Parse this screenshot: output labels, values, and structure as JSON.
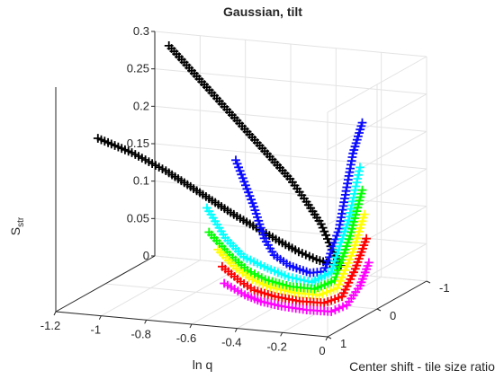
{
  "chart_data": {
    "type": "line",
    "title": "Gaussian, tilt",
    "xlabel": "ln q",
    "ylabel": "Center shift - tile size ratio",
    "zlabel": "S",
    "zlabel_sub": "str",
    "xlim": [
      -1.2,
      0
    ],
    "ylim": [
      -1,
      1
    ],
    "zlim": [
      0,
      0.3
    ],
    "xticks": [
      "-1.2",
      "-1",
      "-0.8",
      "-0.6",
      "-0.4",
      "-0.2",
      "0"
    ],
    "yticks": [
      "1",
      "0",
      "-1"
    ],
    "zticks": [
      "0",
      "0.05",
      "0.1",
      "0.15",
      "0.2",
      "0.25",
      "0.3"
    ],
    "grid": true,
    "marker": "+",
    "series": [
      {
        "color": "#000000",
        "x": [
          -1.2,
          -1.05,
          -0.9,
          -0.75,
          -0.6,
          -0.5,
          -0.4,
          -0.32,
          -0.25,
          -0.2,
          -0.16
        ],
        "y": [
          0.15,
          0.15,
          0.15,
          0.15,
          0.15,
          0.15,
          0.15,
          0.12,
          0.08,
          0.04,
          0.0
        ],
        "z": [
          0.2,
          0.185,
          0.165,
          0.14,
          0.115,
          0.1,
          0.085,
          0.072,
          0.062,
          0.056,
          0.053
        ]
      },
      {
        "color": "#000000",
        "x": [
          -1.05,
          -0.95,
          -0.85,
          -0.75,
          -0.65,
          -0.55,
          -0.45,
          -0.36,
          -0.28,
          -0.22,
          -0.16
        ],
        "y": [
          -0.6,
          -0.55,
          -0.5,
          -0.45,
          -0.4,
          -0.35,
          -0.3,
          -0.22,
          -0.15,
          -0.07,
          0.0
        ],
        "z": [
          0.3,
          0.275,
          0.25,
          0.225,
          0.2,
          0.175,
          0.15,
          0.125,
          0.1,
          0.075,
          0.053
        ]
      },
      {
        "color": "#0a0aff",
        "x": [
          -0.58,
          -0.5,
          -0.45,
          -0.4,
          -0.32,
          -0.22,
          -0.15,
          -0.08,
          -0.03,
          0.0
        ],
        "y": [
          0.2,
          0.2,
          0.22,
          0.25,
          0.3,
          0.35,
          0.38,
          0.4,
          0.35,
          0.3
        ],
        "z": [
          0.19,
          0.13,
          0.09,
          0.07,
          0.06,
          0.055,
          0.06,
          0.12,
          0.22,
          0.26
        ]
      },
      {
        "color": "#00ffff",
        "x": [
          -0.62,
          -0.55,
          -0.48,
          -0.4,
          -0.3,
          -0.2,
          -0.12,
          -0.05,
          -0.01
        ],
        "y": [
          0.6,
          0.55,
          0.5,
          0.45,
          0.42,
          0.4,
          0.38,
          0.35,
          0.3
        ],
        "z": [
          0.14,
          0.1,
          0.075,
          0.062,
          0.05,
          0.045,
          0.06,
          0.13,
          0.2
        ]
      },
      {
        "color": "#00ff00",
        "x": [
          -0.6,
          -0.52,
          -0.45,
          -0.38,
          -0.28,
          -0.18,
          -0.1,
          -0.04,
          0.0
        ],
        "y": [
          0.65,
          0.6,
          0.56,
          0.52,
          0.48,
          0.44,
          0.4,
          0.36,
          0.3
        ],
        "z": [
          0.11,
          0.08,
          0.06,
          0.048,
          0.04,
          0.038,
          0.05,
          0.11,
          0.17
        ]
      },
      {
        "color": "#ffff00",
        "x": [
          -0.55,
          -0.48,
          -0.42,
          -0.35,
          -0.25,
          -0.15,
          -0.08,
          -0.02,
          0.02
        ],
        "y": [
          0.7,
          0.65,
          0.6,
          0.56,
          0.52,
          0.48,
          0.44,
          0.4,
          0.35
        ],
        "z": [
          0.09,
          0.065,
          0.05,
          0.04,
          0.034,
          0.032,
          0.042,
          0.09,
          0.14
        ]
      },
      {
        "color": "#ff0000",
        "x": [
          -0.52,
          -0.45,
          -0.4,
          -0.32,
          -0.22,
          -0.12,
          -0.05,
          0.0,
          0.04
        ],
        "y": [
          0.75,
          0.7,
          0.65,
          0.6,
          0.56,
          0.52,
          0.48,
          0.44,
          0.4
        ],
        "z": [
          0.07,
          0.05,
          0.038,
          0.03,
          0.025,
          0.024,
          0.033,
          0.07,
          0.11
        ]
      },
      {
        "color": "#ff00ff",
        "x": [
          -0.5,
          -0.42,
          -0.36,
          -0.28,
          -0.18,
          -0.08,
          -0.02,
          0.03,
          0.06
        ],
        "y": [
          0.8,
          0.75,
          0.7,
          0.65,
          0.6,
          0.56,
          0.52,
          0.48,
          0.44
        ],
        "z": [
          0.05,
          0.035,
          0.026,
          0.02,
          0.016,
          0.015,
          0.024,
          0.05,
          0.08
        ]
      }
    ]
  }
}
